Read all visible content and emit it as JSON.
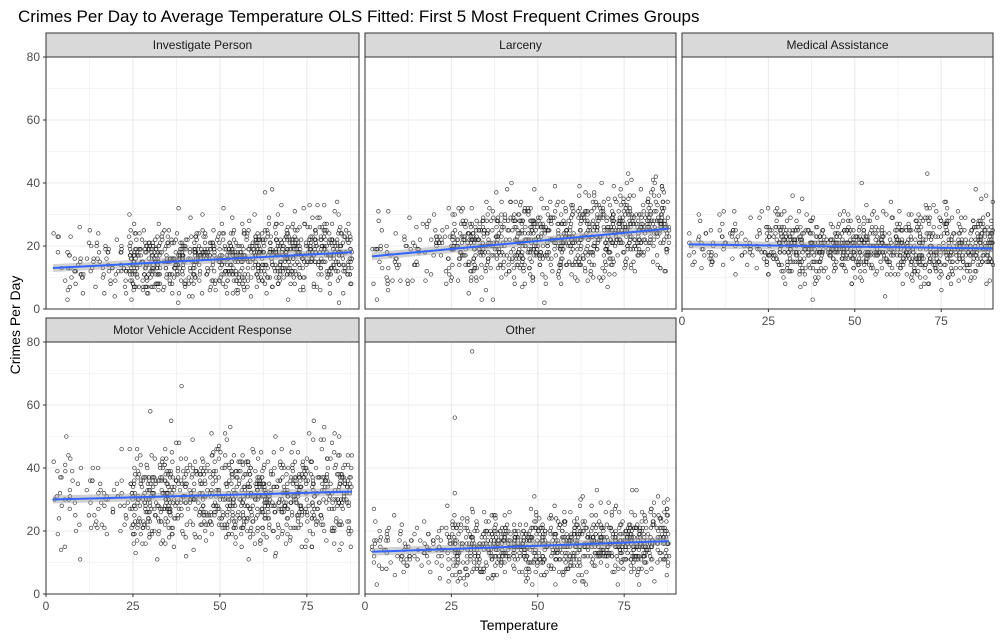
{
  "chart_data": {
    "type": "scatter",
    "title": "Crimes Per Day to Average Temperature OLS Fitted: First 5 Most Frequent Crimes Groups",
    "xlabel": "Temperature",
    "ylabel": "Crimes Per Day",
    "xlim": [
      0,
      90
    ],
    "ylim": [
      0,
      80
    ],
    "x_ticks": [
      0,
      25,
      50,
      75
    ],
    "y_ticks": [
      0,
      20,
      40,
      60,
      80
    ],
    "grid": true,
    "legend": "none",
    "colors": {
      "points": "#000000",
      "fit_line": "#3366FF",
      "ribbon": "#999999",
      "strip_fill": "#D9D9D9",
      "grid": "#EBEBEB"
    },
    "panels": [
      {
        "name": "Investigate Person",
        "n_points": 1000,
        "x_range": [
          2,
          88
        ],
        "fit": {
          "x": [
            2,
            88
          ],
          "y": [
            13.0,
            18.0
          ]
        },
        "cloud": {
          "mean": 16,
          "sd": 5.5,
          "slope": 0.058
        },
        "extra_points": [
          {
            "x": 65,
            "y": 38
          },
          {
            "x": 63,
            "y": 37
          },
          {
            "x": 24,
            "y": 30
          },
          {
            "x": 80,
            "y": 33
          },
          {
            "x": 83,
            "y": 31
          },
          {
            "x": 45,
            "y": 30
          },
          {
            "x": 13,
            "y": 20
          }
        ]
      },
      {
        "name": "Larceny",
        "n_points": 1000,
        "x_range": [
          2,
          88
        ],
        "fit": {
          "x": [
            2,
            88
          ],
          "y": [
            16.7,
            25.5
          ]
        },
        "cloud": {
          "mean": 22,
          "sd": 6.3,
          "slope": 0.1
        },
        "extra_points": [
          {
            "x": 49,
            "y": 38
          },
          {
            "x": 72,
            "y": 39
          },
          {
            "x": 74,
            "y": 38
          },
          {
            "x": 62,
            "y": 36
          },
          {
            "x": 30,
            "y": 5
          },
          {
            "x": 37,
            "y": 3
          },
          {
            "x": 20,
            "y": 30
          }
        ]
      },
      {
        "name": "Medical Assistance",
        "n_points": 1000,
        "x_range": [
          2,
          90
        ],
        "fit": {
          "x": [
            2,
            90
          ],
          "y": [
            20.5,
            19.2
          ]
        },
        "cloud": {
          "mean": 20,
          "sd": 5.3,
          "slope": -0.015
        },
        "extra_points": [
          {
            "x": 71,
            "y": 43
          },
          {
            "x": 52,
            "y": 40
          },
          {
            "x": 85,
            "y": 38
          },
          {
            "x": 32,
            "y": 36
          },
          {
            "x": 76,
            "y": 34
          }
        ]
      },
      {
        "name": "Motor Vehicle Accident Response",
        "n_points": 1000,
        "x_range": [
          2,
          88
        ],
        "fit": {
          "x": [
            2,
            88
          ],
          "y": [
            30.0,
            32.5
          ]
        },
        "cloud": {
          "mean": 31,
          "sd": 7.2,
          "slope": 0.03
        },
        "extra_points": [
          {
            "x": 39,
            "y": 66
          },
          {
            "x": 30,
            "y": 58
          },
          {
            "x": 36,
            "y": 55
          },
          {
            "x": 53,
            "y": 53
          },
          {
            "x": 32,
            "y": 11
          },
          {
            "x": 85,
            "y": 16
          },
          {
            "x": 7,
            "y": 43
          },
          {
            "x": 77,
            "y": 55
          }
        ]
      },
      {
        "name": "Other",
        "n_points": 1000,
        "x_range": [
          2,
          88
        ],
        "fit": {
          "x": [
            2,
            88
          ],
          "y": [
            13.4,
            16.8
          ]
        },
        "cloud": {
          "mean": 15.5,
          "sd": 5.0,
          "slope": 0.04
        },
        "extra_points": [
          {
            "x": 31,
            "y": 77
          },
          {
            "x": 26,
            "y": 56
          },
          {
            "x": 26,
            "y": 32
          },
          {
            "x": 63,
            "y": 31
          },
          {
            "x": 49,
            "y": 31
          },
          {
            "x": 3,
            "y": 23
          }
        ]
      }
    ]
  }
}
